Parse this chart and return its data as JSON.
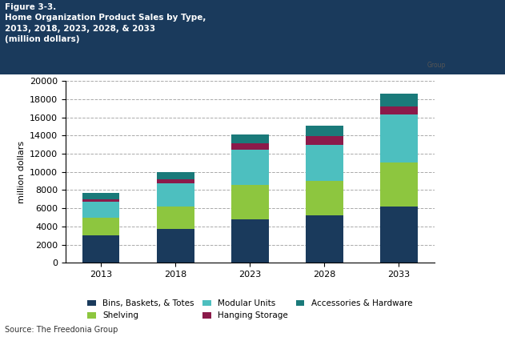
{
  "years": [
    "2013",
    "2018",
    "2023",
    "2028",
    "2033"
  ],
  "categories": [
    "Bins, Baskets, & Totes",
    "Shelving",
    "Modular Units",
    "Hanging Storage",
    "Accessories & Hardware"
  ],
  "colors": [
    "#1a3a5c",
    "#8dc63f",
    "#4dbfbf",
    "#8b1a4a",
    "#1a7a7a"
  ],
  "values": {
    "Bins, Baskets, & Totes": [
      3000,
      3700,
      4800,
      5200,
      6200
    ],
    "Shelving": [
      2000,
      2500,
      3800,
      3800,
      4800
    ],
    "Modular Units": [
      1700,
      2500,
      3800,
      4000,
      5300
    ],
    "Hanging Storage": [
      300,
      500,
      700,
      900,
      900
    ],
    "Accessories & Hardware": [
      700,
      800,
      1000,
      1200,
      1400
    ]
  },
  "ylabel": "million dollars",
  "ylim": [
    0,
    20000
  ],
  "yticks": [
    0,
    2000,
    4000,
    6000,
    8000,
    10000,
    12000,
    14000,
    16000,
    18000,
    20000
  ],
  "title_lines": [
    "Figure 3-3.",
    "Home Organization Product Sales by Type,",
    "2013, 2018, 2023, 2028, & 2033",
    "(million dollars)"
  ],
  "title_bg_color": "#1a3a5c",
  "title_text_color": "#ffffff",
  "source_text": "Source: The Freedonia Group",
  "background_color": "#ffffff",
  "plot_bg_color": "#ffffff",
  "grid_color": "#aaaaaa",
  "bar_width": 0.5
}
